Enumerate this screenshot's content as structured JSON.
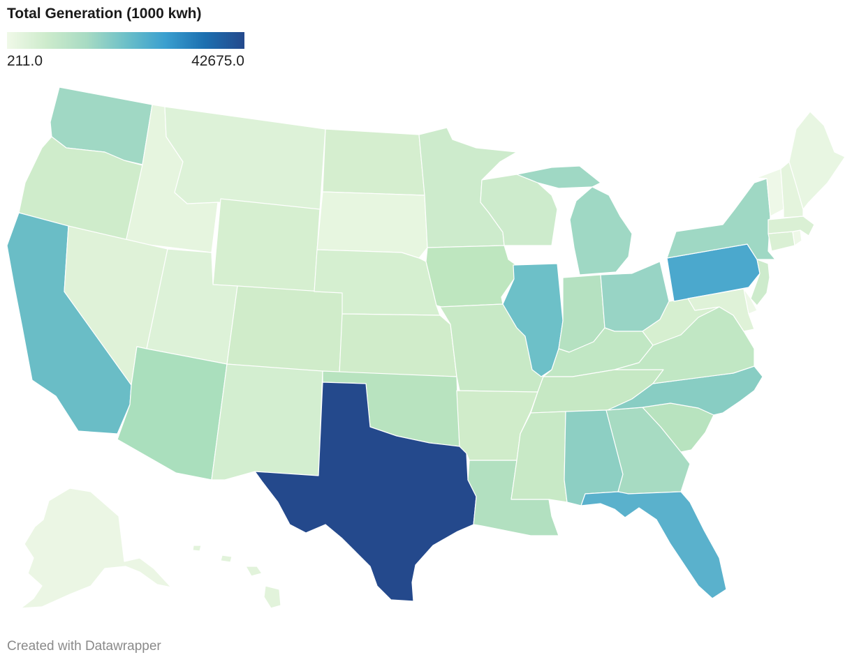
{
  "title": "Total Generation (1000 kwh)",
  "legend": {
    "min_label": "211.0",
    "max_label": "42675.0",
    "gradient": [
      "#f0f9e8",
      "#cdebcc",
      "#a8dbc3",
      "#6dc0c8",
      "#3a9fcf",
      "#1c6fb0",
      "#24498c"
    ]
  },
  "credit": "Created with Datawrapper",
  "chart_data": {
    "type": "choropleth",
    "title": "Total Generation (1000 kwh)",
    "scale": {
      "min": 211.0,
      "max": 42675.0
    },
    "states": [
      {
        "code": "WA",
        "color": "#a0d8c4"
      },
      {
        "code": "OR",
        "color": "#cfeccb"
      },
      {
        "code": "CA",
        "color": "#6abdc6"
      },
      {
        "code": "ID",
        "color": "#e6f5df"
      },
      {
        "code": "NV",
        "color": "#dff2d8"
      },
      {
        "code": "MT",
        "color": "#ddf2d8"
      },
      {
        "code": "WY",
        "color": "#d6efd0"
      },
      {
        "code": "UT",
        "color": "#ddf2d8"
      },
      {
        "code": "AZ",
        "color": "#aadfbd"
      },
      {
        "code": "CO",
        "color": "#d0ecca"
      },
      {
        "code": "NM",
        "color": "#d3eed0"
      },
      {
        "code": "ND",
        "color": "#d5eecf"
      },
      {
        "code": "SD",
        "color": "#e7f6e0"
      },
      {
        "code": "NE",
        "color": "#d5efd0"
      },
      {
        "code": "KS",
        "color": "#d0ecca"
      },
      {
        "code": "OK",
        "color": "#b8e3bf"
      },
      {
        "code": "TX",
        "color": "#24498c"
      },
      {
        "code": "MN",
        "color": "#cdebcc"
      },
      {
        "code": "IA",
        "color": "#bee6bf"
      },
      {
        "code": "MO",
        "color": "#c8e9c6"
      },
      {
        "code": "AR",
        "color": "#d0ecca"
      },
      {
        "code": "LA",
        "color": "#b2e0c0"
      },
      {
        "code": "WI",
        "color": "#cdebcc"
      },
      {
        "code": "IL",
        "color": "#6dc0c8"
      },
      {
        "code": "MI",
        "color": "#9fd8c4"
      },
      {
        "code": "IN",
        "color": "#b5e1c1"
      },
      {
        "code": "OH",
        "color": "#98d4c5"
      },
      {
        "code": "KY",
        "color": "#c1e7c4"
      },
      {
        "code": "TN",
        "color": "#c6e8c4"
      },
      {
        "code": "MS",
        "color": "#c8e9c6"
      },
      {
        "code": "AL",
        "color": "#8dcfc3"
      },
      {
        "code": "GA",
        "color": "#a7dbc2"
      },
      {
        "code": "FL",
        "color": "#5ab1cc"
      },
      {
        "code": "SC",
        "color": "#b8e3bf"
      },
      {
        "code": "NC",
        "color": "#88cdc3"
      },
      {
        "code": "VA",
        "color": "#c1e7c4"
      },
      {
        "code": "WV",
        "color": "#d6efd0"
      },
      {
        "code": "PA",
        "color": "#4ba8cd"
      },
      {
        "code": "NY",
        "color": "#9fd8c4"
      },
      {
        "code": "NJ",
        "color": "#cdebcc"
      },
      {
        "code": "MD",
        "color": "#dff2d8"
      },
      {
        "code": "DE",
        "color": "#eef8e8"
      },
      {
        "code": "CT",
        "color": "#daf0d4"
      },
      {
        "code": "RI",
        "color": "#eef8e8"
      },
      {
        "code": "MA",
        "color": "#daf0d4"
      },
      {
        "code": "VT",
        "color": "#eef8e8"
      },
      {
        "code": "NH",
        "color": "#e4f4dd"
      },
      {
        "code": "ME",
        "color": "#e8f6e2"
      },
      {
        "code": "AK",
        "color": "#ebf6e4"
      },
      {
        "code": "HI",
        "color": "#e2f3db"
      }
    ]
  }
}
